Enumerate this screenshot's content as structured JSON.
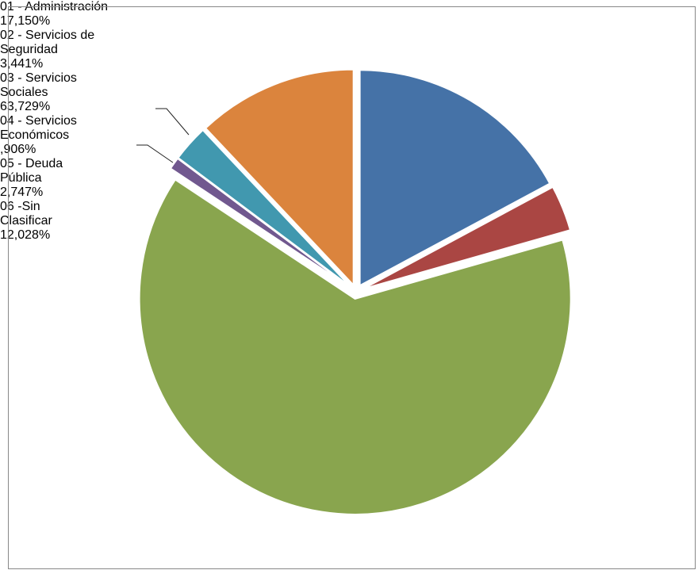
{
  "chart_data": {
    "type": "pie",
    "categories": [
      "01 - Administración",
      "02 - Servicios de Seguridad",
      "03 - Servicios Sociales",
      "04 - Servicios Económicos",
      "05 - Deuda Pública",
      "06 -Sin Clasificar"
    ],
    "values": [
      17.15,
      3.441,
      63.729,
      0.906,
      2.747,
      12.028
    ],
    "value_labels": [
      "17,150%",
      "3,441%",
      "63,729%",
      ",906%",
      "2,747%",
      "12,028%"
    ],
    "colors": [
      "#4572a7",
      "#aa4643",
      "#89a54e",
      "#71588f",
      "#4198af",
      "#db843d"
    ]
  }
}
